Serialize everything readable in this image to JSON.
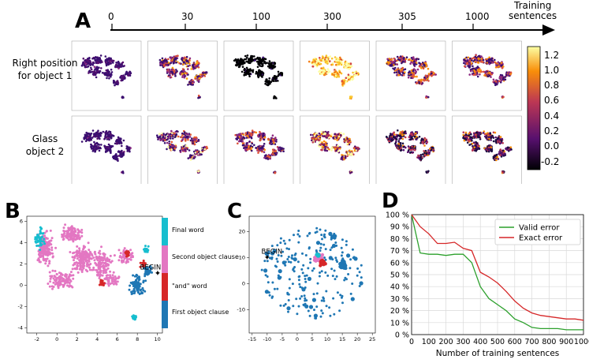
{
  "panels": {
    "A": {
      "letter": "A",
      "timeline_ticks": [
        "0",
        "30",
        "100",
        "300",
        "305",
        "1000"
      ],
      "timeline_label_line1": "Training",
      "timeline_label_line2": "sentences",
      "row1_label_line1": "Right position",
      "row1_label_line2": "for object 1",
      "row2_label_line1": "Glass",
      "row2_label_line2": "object 2",
      "colorbar_ticks": [
        "1.2",
        "1.0",
        "0.8",
        "0.6",
        "0.4",
        "0.2",
        "0.0",
        "-0.2"
      ],
      "colorbar_colors": [
        "#fcffa4",
        "#f98e09",
        "#bc3754",
        "#57106e",
        "#000004"
      ]
    },
    "B": {
      "letter": "B",
      "legend_entries": [
        "Final word",
        "Second object clause",
        "\"and\" word",
        "First object clause"
      ],
      "legend_colors": [
        "#17becf",
        "#e377c2",
        "#d62728",
        "#1f77b4"
      ],
      "annotation": "BEGIN",
      "xticks": [
        "-2",
        "0",
        "2",
        "4",
        "6",
        "8",
        "10"
      ],
      "yticks": [
        "6",
        "4",
        "2",
        "0",
        "-2",
        "-4"
      ]
    },
    "C": {
      "letter": "C",
      "annotation": "BEGIN",
      "xticks": [
        "-15",
        "-10",
        "-5",
        "0",
        "5",
        "10",
        "15",
        "20",
        "25"
      ],
      "yticks": [
        "20",
        "10",
        "0",
        "-10"
      ]
    },
    "D": {
      "letter": "D"
    }
  },
  "chart_data": {
    "type": "line",
    "xlabel": "Number of training sentences",
    "ylabel": "",
    "xlim": [
      0,
      1000
    ],
    "ylim": [
      0,
      100
    ],
    "xticks": [
      "0",
      "100",
      "200",
      "300",
      "400",
      "500",
      "600",
      "700",
      "800",
      "900",
      "1000"
    ],
    "yticks": [
      "0 %",
      "10 %",
      "20 %",
      "30 %",
      "40 %",
      "50 %",
      "60 %",
      "70 %",
      "80 %",
      "90 %",
      "100 %"
    ],
    "grid": true,
    "legend_position": "top-right",
    "series": [
      {
        "name": "Valid error",
        "color": "#2ca02c",
        "x": [
          0,
          50,
          100,
          150,
          200,
          250,
          300,
          350,
          400,
          450,
          500,
          550,
          600,
          650,
          700,
          750,
          800,
          850,
          900,
          950,
          1000
        ],
        "values": [
          100,
          68,
          67,
          67,
          66,
          67,
          67,
          60,
          40,
          30,
          25,
          20,
          13,
          10,
          6,
          5,
          5,
          5,
          4,
          4,
          4
        ]
      },
      {
        "name": "Exact error",
        "color": "#d62728",
        "x": [
          0,
          50,
          100,
          150,
          200,
          250,
          300,
          350,
          400,
          450,
          500,
          550,
          600,
          650,
          700,
          750,
          800,
          850,
          900,
          950,
          1000
        ],
        "values": [
          100,
          90,
          84,
          76,
          76,
          77,
          72,
          70,
          52,
          48,
          43,
          36,
          28,
          22,
          18,
          16,
          15,
          14,
          13,
          13,
          12
        ]
      }
    ]
  }
}
